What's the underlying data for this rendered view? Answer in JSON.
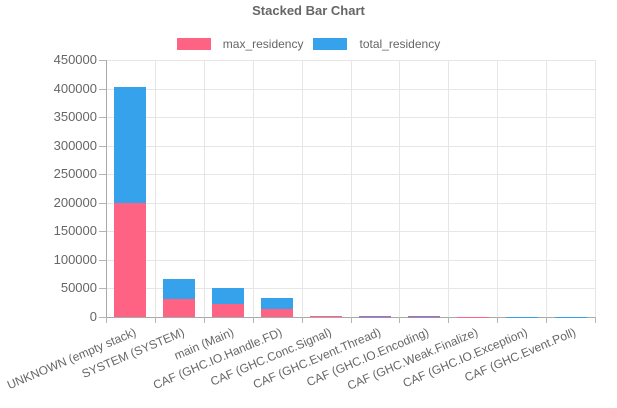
{
  "chart_data": {
    "type": "bar",
    "stacked": true,
    "title": "Stacked Bar Chart",
    "categories": [
      "UNKNOWN (empty stack)",
      "SYSTEM (SYSTEM)",
      "main (Main)",
      "CAF (GHC.IO.Handle.FD)",
      "CAF (GHC.Conc.Signal)",
      "CAF (GHC.Event.Thread)",
      "CAF (GHC.IO.Encoding)",
      "CAF (GHC.Weak.Finalize)",
      "CAF (GHC.IO.Exception)",
      "CAF (GHC.Event.Poll)"
    ],
    "series": [
      {
        "name": "max_residency",
        "color": "#FF6384",
        "values": [
          200000,
          31500,
          22500,
          14000,
          1200,
          900,
          400,
          150,
          100,
          80
        ]
      },
      {
        "name": "total_residency",
        "color": "#36A2EB",
        "values": [
          203000,
          34500,
          28000,
          18500,
          1400,
          1000,
          1300,
          250,
          200,
          150
        ]
      }
    ],
    "ylim": [
      0,
      450000
    ],
    "ytick_step": 50000,
    "yticks": [
      "0",
      "50000",
      "100000",
      "150000",
      "200000",
      "250000",
      "300000",
      "350000",
      "400000",
      "450000"
    ],
    "grid": "on",
    "legend_position": "top",
    "xlabel": "",
    "ylabel": ""
  },
  "colors": {
    "text": "#666666",
    "gridline": "#e6e6e6",
    "axis": "#a9a9a9"
  }
}
